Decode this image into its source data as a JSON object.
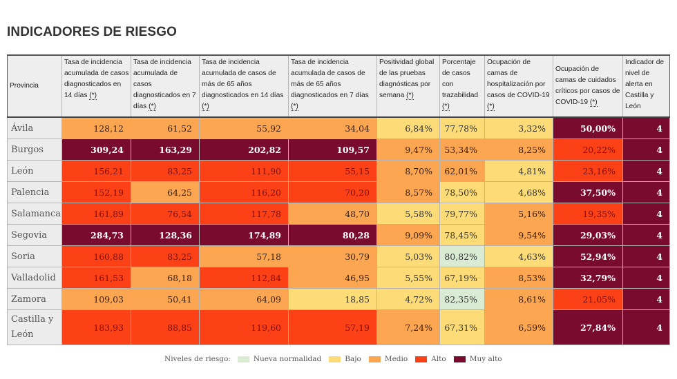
{
  "title": "INDICADORES DE RIESGO",
  "note_marker": "(*)",
  "headers": [
    {
      "text": "Provincia",
      "note": false
    },
    {
      "text": "Tasa de incidencia acumulada de casos diagnosticados en 14 días",
      "note": true
    },
    {
      "text": "Tasa de incidencia acumulada de casos diagnosticados en 7 días",
      "note": true
    },
    {
      "text": "Tasa de incidencia acumulada de casos de más de 65 años diagnosticados en 14 días",
      "note": true
    },
    {
      "text": "Tasa de incidencia acumulada de casos de más de 65 años diagnosticados en 7 días",
      "note": true
    },
    {
      "text": "Positividad global de las pruebas diagnósticas por semana",
      "note": true
    },
    {
      "text": "Porcentaje de casos con trazabilidad",
      "note": true
    },
    {
      "text": "Ocupación de camas de hospitalización por casos de COVID-19",
      "note": true
    },
    {
      "text": "Ocupación de camas de cuidados críticos por casos de COVID-19",
      "note": true
    },
    {
      "text": "Indicador de nivel de alerta en Castilla y León",
      "note": false
    }
  ],
  "rows": [
    {
      "provincia": "Ávila",
      "values": [
        "128,12",
        "61,52",
        "55,92",
        "34,04",
        "6,84%",
        "77,78%",
        "3,32%",
        "50,00%",
        "4"
      ],
      "levels": [
        2,
        2,
        2,
        2,
        1,
        1,
        1,
        4,
        4
      ]
    },
    {
      "provincia": "Burgos",
      "values": [
        "309,24",
        "163,29",
        "202,82",
        "109,57",
        "9,47%",
        "53,34%",
        "8,25%",
        "20,22%",
        "4"
      ],
      "levels": [
        4,
        4,
        4,
        4,
        2,
        2,
        2,
        3,
        4
      ]
    },
    {
      "provincia": "León",
      "values": [
        "156,21",
        "83,25",
        "111,90",
        "55,15",
        "8,70%",
        "62,01%",
        "4,81%",
        "23,16%",
        "4"
      ],
      "levels": [
        3,
        3,
        3,
        3,
        2,
        2,
        1,
        3,
        4
      ]
    },
    {
      "provincia": "Palencia",
      "values": [
        "152,19",
        "64,25",
        "116,20",
        "70,20",
        "8,57%",
        "78,50%",
        "4,68%",
        "37,50%",
        "4"
      ],
      "levels": [
        3,
        2,
        3,
        3,
        2,
        1,
        1,
        4,
        4
      ]
    },
    {
      "provincia": "Salamanca",
      "values": [
        "161,89",
        "76,54",
        "117,78",
        "48,70",
        "5,58%",
        "79,77%",
        "5,16%",
        "19,35%",
        "4"
      ],
      "levels": [
        3,
        3,
        3,
        2,
        1,
        1,
        2,
        3,
        4
      ]
    },
    {
      "provincia": "Segovia",
      "values": [
        "284,73",
        "128,36",
        "174,89",
        "80,28",
        "9,09%",
        "78,45%",
        "9,54%",
        "29,03%",
        "4"
      ],
      "levels": [
        4,
        4,
        4,
        4,
        2,
        1,
        2,
        4,
        4
      ]
    },
    {
      "provincia": "Soria",
      "values": [
        "160,88",
        "83,25",
        "57,18",
        "30,79",
        "5,03%",
        "80,82%",
        "4,63%",
        "52,94%",
        "4"
      ],
      "levels": [
        3,
        3,
        2,
        2,
        1,
        0,
        1,
        4,
        4
      ]
    },
    {
      "provincia": "Valladolid",
      "values": [
        "161,53",
        "68,18",
        "112,84",
        "46,95",
        "5,55%",
        "67,19%",
        "8,53%",
        "32,79%",
        "4"
      ],
      "levels": [
        3,
        2,
        3,
        2,
        1,
        1,
        2,
        4,
        4
      ]
    },
    {
      "provincia": "Zamora",
      "values": [
        "109,03",
        "50,41",
        "64,09",
        "18,85",
        "4,72%",
        "82,35%",
        "8,61%",
        "21,05%",
        "4"
      ],
      "levels": [
        2,
        2,
        2,
        1,
        1,
        0,
        2,
        3,
        4
      ]
    },
    {
      "provincia": "Castilla y León",
      "values": [
        "183,93",
        "88,85",
        "119,60",
        "57,19",
        "7,24%",
        "67,31%",
        "6,59%",
        "27,84%",
        "4"
      ],
      "levels": [
        3,
        3,
        3,
        3,
        2,
        1,
        2,
        4,
        4
      ],
      "total": true
    }
  ],
  "legend": {
    "label": "Niveles de riesgo:",
    "items": [
      {
        "name": "Nueva normalidad",
        "color": "#d9ecd3"
      },
      {
        "name": "Bajo",
        "color": "#fddc77"
      },
      {
        "name": "Medio",
        "color": "#fda651"
      },
      {
        "name": "Alto",
        "color": "#fc4117"
      },
      {
        "name": "Muy alto",
        "color": "#780b2e"
      }
    ]
  }
}
